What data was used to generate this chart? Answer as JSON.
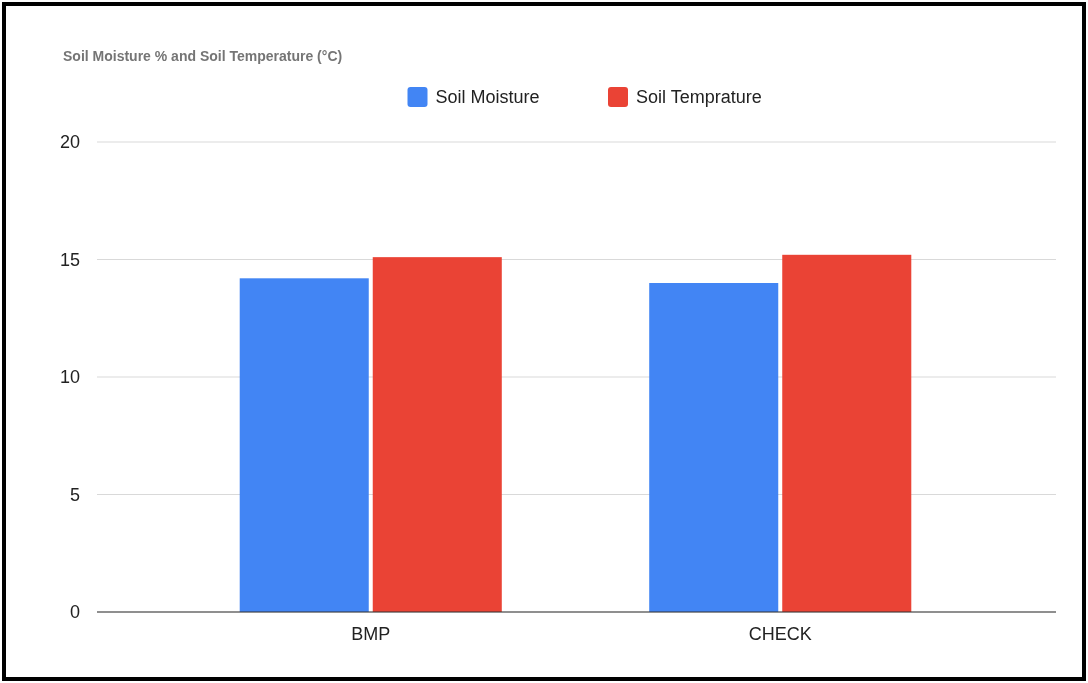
{
  "chart_data": {
    "type": "bar",
    "title": "Soil Moisture % and Soil Temperature (°C)",
    "categories": [
      "BMP",
      "CHECK"
    ],
    "series": [
      {
        "name": "Soil Moisture",
        "color": "#4285f4",
        "values": [
          14.2,
          14.0
        ]
      },
      {
        "name": "Soil Temprature",
        "color": "#ea4335",
        "values": [
          15.1,
          15.2
        ]
      }
    ],
    "ylim": [
      0,
      20
    ],
    "yticks": [
      0,
      5,
      10,
      15,
      20
    ],
    "grid": "y",
    "legend": "top"
  }
}
